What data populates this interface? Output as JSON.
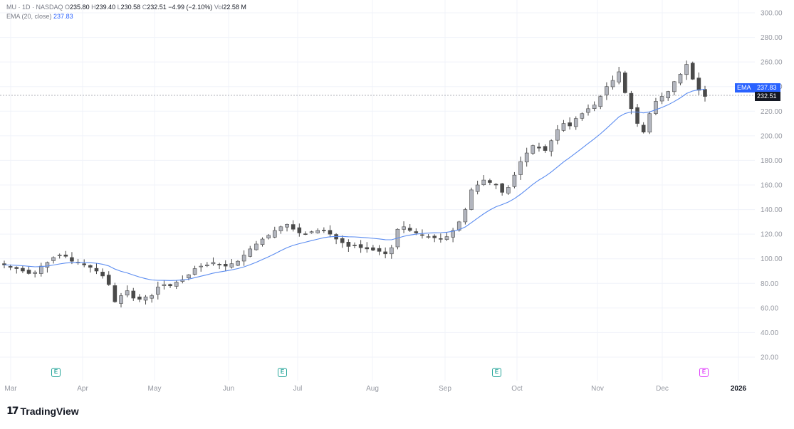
{
  "legend": {
    "symbol": "MU · 1D · NASDAQ",
    "o_label": "O",
    "open": "235.80",
    "h_label": "H",
    "high": "239.40",
    "l_label": "L",
    "low": "230.58",
    "c_label": "C",
    "close": "232.51",
    "change": "−4.99 (−2.10%)",
    "vol_label": "Vol",
    "volume": "22.58 M",
    "ema_label": "EMA (20, close)",
    "ema_value": "237.83"
  },
  "price_badges": {
    "ema_tag": "EMA",
    "ema_value": "237.83",
    "last_price": "232.51"
  },
  "earnings_marker": "E",
  "brand": "TradingView",
  "colors": {
    "up": "#b2b5be",
    "down": "#4a4a4a",
    "ema": "#2962ff",
    "grid": "#f0f3fa",
    "earnings_past": "#26a69a",
    "earnings_future": "#e040fb"
  },
  "chart_data": {
    "type": "candlestick",
    "title": "MU · 1D · NASDAQ",
    "ylim": [
      10,
      305
    ],
    "y_ticks": [
      "300.00",
      "280.00",
      "260.00",
      "240.00",
      "220.00",
      "200.00",
      "180.00",
      "160.00",
      "140.00",
      "120.00",
      "100.00",
      "80.00",
      "60.00",
      "40.00",
      "20.00"
    ],
    "x_ticks": [
      "Mar",
      "Apr",
      "May",
      "Jun",
      "Jul",
      "Aug",
      "Sep",
      "Oct",
      "Nov",
      "Dec",
      "2026"
    ],
    "series": [
      {
        "name": "MU",
        "type": "candles",
        "ohlc_approx_closes": [
          95,
          93,
          92,
          90,
          88,
          89,
          94,
          97,
          101,
          103,
          102,
          98,
          97,
          95,
          93,
          90,
          86,
          79,
          65,
          70,
          74,
          68,
          67,
          69,
          70,
          77,
          79,
          78,
          81,
          83,
          87,
          92,
          94,
          95,
          97,
          95,
          94,
          96,
          98,
          103,
          108,
          112,
          116,
          119,
          123,
          126,
          128,
          124,
          121,
          120,
          122,
          123,
          123,
          120,
          116,
          113,
          110,
          111,
          109,
          108,
          107,
          106,
          104,
          109,
          124,
          126,
          123,
          121,
          119,
          118,
          117,
          116,
          118,
          123,
          130,
          140,
          156,
          160,
          164,
          162,
          160,
          154,
          158,
          168,
          179,
          186,
          192,
          190,
          188,
          196,
          205,
          210,
          208,
          214,
          218,
          222,
          225,
          232,
          240,
          245,
          252,
          235,
          222,
          210,
          203,
          218,
          228,
          232,
          236,
          244,
          250,
          258,
          246,
          237,
          232
        ]
      },
      {
        "name": "EMA (20, close)",
        "type": "line",
        "values_endpoint": 237.83
      }
    ],
    "annotations": {
      "last_price": 232.51,
      "ema": 237.83,
      "earnings_markers": [
        "Apr",
        "Jul",
        "Oct",
        "Dec (upcoming)"
      ]
    },
    "grid": true,
    "legend_position": "top-left"
  }
}
